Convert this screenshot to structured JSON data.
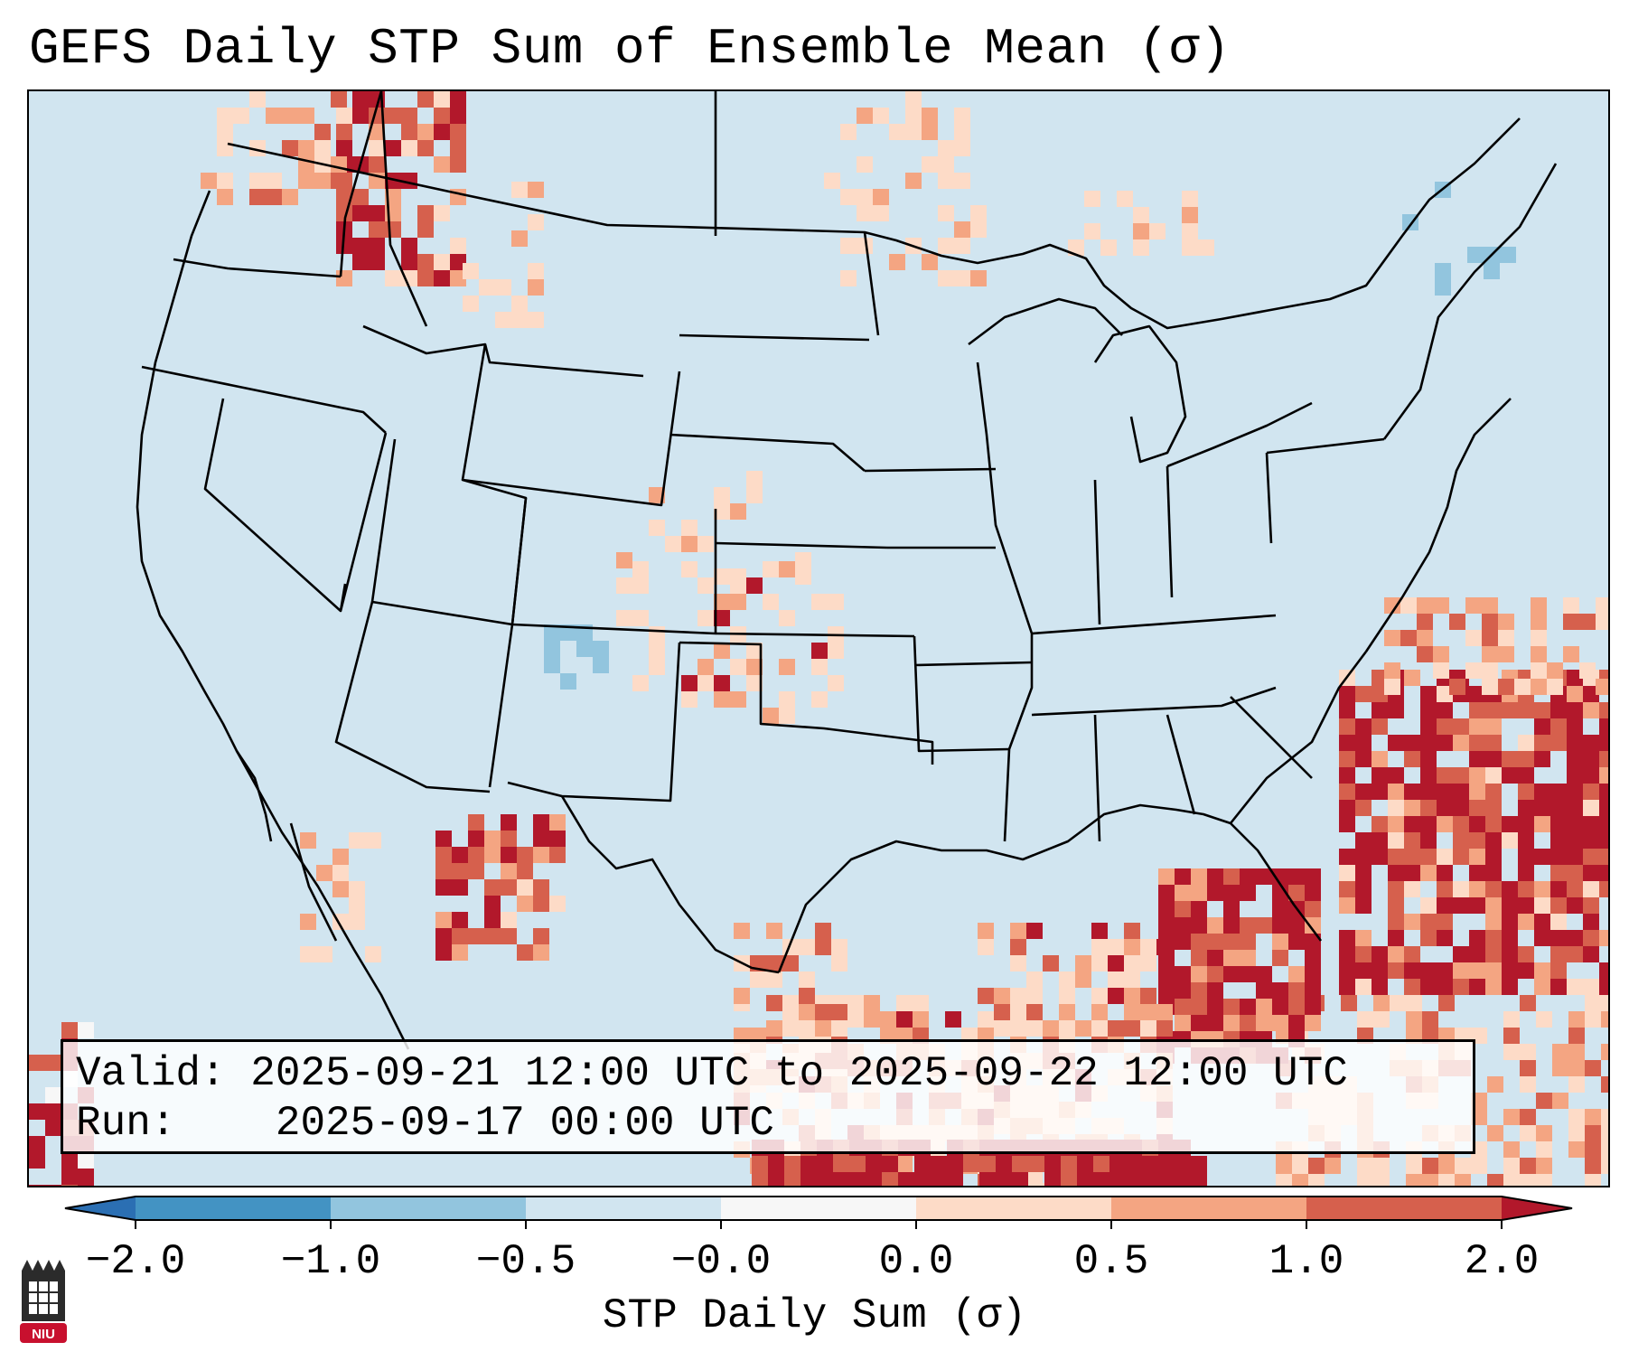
{
  "title": "GEFS Daily STP Sum of Ensemble Mean (σ)",
  "info": {
    "valid_label": "Valid:",
    "valid_value": "2025-09-21 12:00 UTC to 2025-09-22 12:00 UTC",
    "run_label": "Run:",
    "run_value": "2025-09-17 00:00 UTC"
  },
  "colorbar": {
    "label": "STP Daily Sum (σ)",
    "ticks": [
      "−2.0",
      "−1.0",
      "−0.5",
      "−0.0",
      "0.0",
      "0.5",
      "1.0",
      "2.0"
    ],
    "bins": [
      {
        "range": "< -2.0",
        "color": "#2b6fb3"
      },
      {
        "range": "-2.0 to -1.0",
        "color": "#4393c3"
      },
      {
        "range": "-1.0 to -0.5",
        "color": "#92c5de"
      },
      {
        "range": "-0.5 to -0.0",
        "color": "#d1e5f0"
      },
      {
        "range": "-0.0 to 0.0",
        "color": "#f7f7f7"
      },
      {
        "range": "0.0 to 0.5",
        "color": "#fddbc7"
      },
      {
        "range": "0.5 to 1.0",
        "color": "#f4a582"
      },
      {
        "range": "1.0 to 2.0",
        "color": "#d6604d"
      },
      {
        "range": "> 2.0",
        "color": "#b2182b"
      }
    ]
  },
  "map": {
    "background_color": "#d1e5f0",
    "region": "Continental United States",
    "anomaly_areas": [
      {
        "name": "Western Atlantic",
        "level": "> 2.0"
      },
      {
        "name": "Gulf of Mexico / Florida",
        "level": "> 2.0"
      },
      {
        "name": "Pacific Northwest",
        "level": "1.0 to 2.0"
      },
      {
        "name": "Northern Mexico",
        "level": "1.0 to 2.0"
      },
      {
        "name": "Southern Plains",
        "level": "0.5 to 1.0"
      },
      {
        "name": "Colorado",
        "level": "-1.0 to -0.5"
      }
    ]
  },
  "logo": {
    "text": "NIU",
    "color": "#c8102e"
  }
}
